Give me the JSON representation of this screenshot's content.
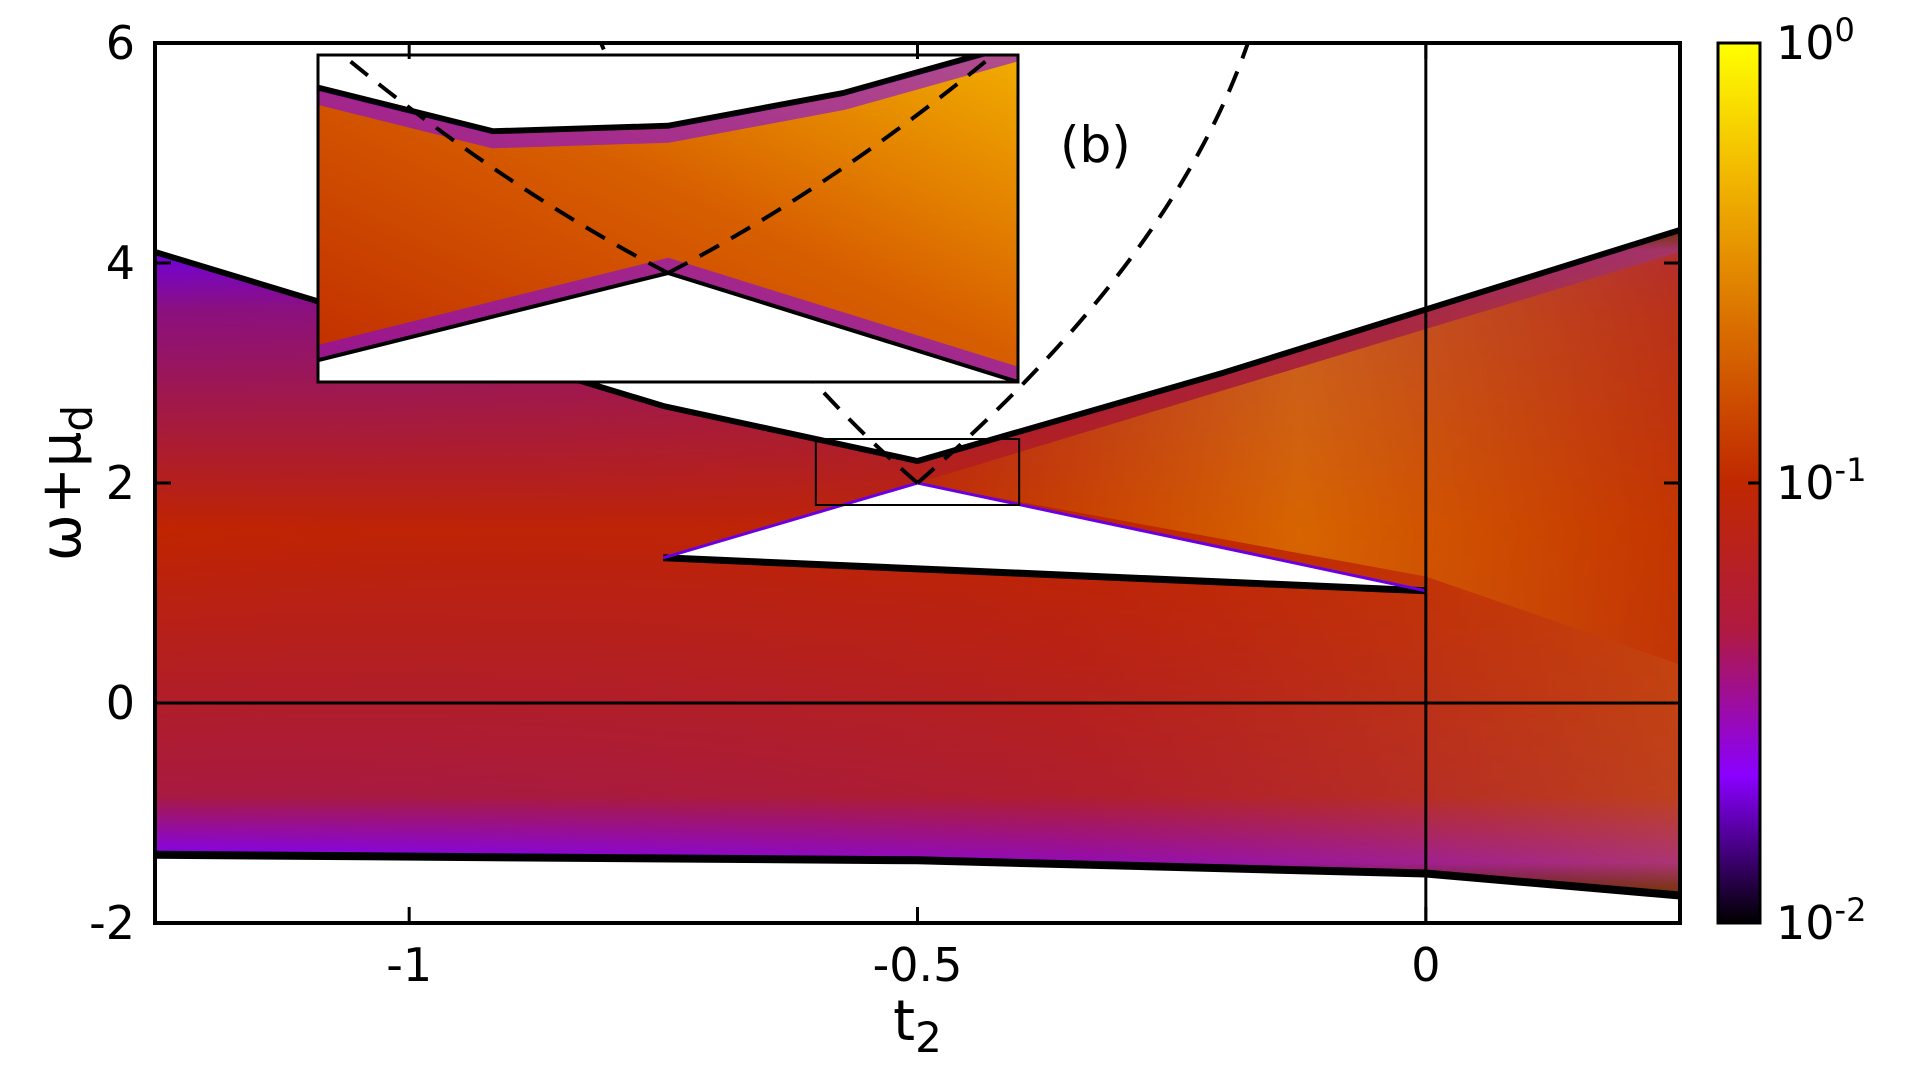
{
  "chart_data": {
    "type": "heatmap",
    "panel_label": "(b)",
    "xlabel_base": "t",
    "xlabel_sub": "2",
    "ylabel_base": "ω+μ",
    "ylabel_sub": "d",
    "xlim": [
      -1.25,
      0.25
    ],
    "ylim": [
      -2,
      6
    ],
    "x_ticks": [
      {
        "value": -1,
        "label": "-1"
      },
      {
        "value": -0.5,
        "label": "-0.5"
      },
      {
        "value": 0,
        "label": "0"
      }
    ],
    "y_ticks": [
      {
        "value": -2,
        "label": "-2"
      },
      {
        "value": 0,
        "label": "0"
      },
      {
        "value": 2,
        "label": "2"
      },
      {
        "value": 4,
        "label": "4"
      },
      {
        "value": 6,
        "label": "6"
      }
    ],
    "colorbar": {
      "scale": "log",
      "range": [
        0.01,
        1
      ],
      "ticks": [
        {
          "value": 1,
          "base": "10",
          "exp": "0"
        },
        {
          "value": 0.1,
          "base": "10",
          "exp": "-1"
        },
        {
          "value": 0.01,
          "base": "10",
          "exp": "-2"
        }
      ],
      "colors": [
        "#000000",
        "#8a00ff",
        "#b01a40",
        "#c02800",
        "#d86a00",
        "#f0b000",
        "#ffff00"
      ]
    },
    "bands": {
      "upper_edge": [
        [
          -1.25,
          4.1
        ],
        [
          -0.75,
          2.7
        ],
        [
          -0.5,
          2.2
        ],
        [
          -0.2,
          3.0
        ],
        [
          0.25,
          4.3
        ]
      ],
      "gap_top": [
        [
          -0.75,
          1.32
        ],
        [
          -0.5,
          2.0
        ],
        [
          0.0,
          1.02
        ]
      ],
      "gap_bottom": [
        [
          -0.75,
          1.32
        ],
        [
          0.0,
          1.02
        ]
      ],
      "lower_edge": [
        [
          -1.25,
          -1.38
        ],
        [
          -0.5,
          -1.43
        ],
        [
          0.0,
          -1.55
        ],
        [
          0.25,
          -1.75
        ]
      ]
    },
    "dashed_curve": {
      "vertex": [
        -0.5,
        2.0
      ],
      "left_arm": [
        [
          -0.5,
          2.0
        ],
        [
          -0.75,
          4.0
        ],
        [
          -0.85,
          7.0
        ]
      ],
      "right_arm": [
        [
          -0.5,
          2.0
        ],
        [
          -0.25,
          4.0
        ],
        [
          -0.175,
          6.0
        ]
      ]
    },
    "zoom_box": {
      "xlim": [
        -0.6,
        -0.4
      ],
      "ylim": [
        1.8,
        2.4
      ]
    },
    "reference_lines": {
      "vertical_x": 0,
      "horizontal_y": 0
    }
  }
}
